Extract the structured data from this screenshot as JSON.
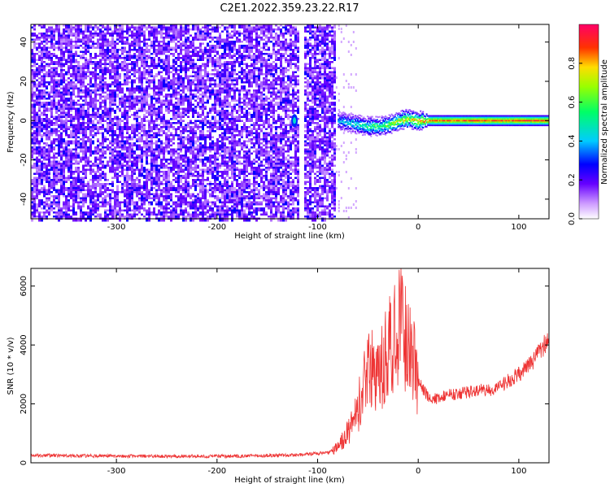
{
  "chart_data": [
    {
      "type": "heatmap",
      "title": "C2E1.2022.359.23.22.R17",
      "xlabel": "Height of straight line (km)",
      "ylabel": "Frequency (Hz)",
      "xlim": [
        -385,
        130
      ],
      "ylim": [
        -50,
        49
      ],
      "xticks": [
        -300,
        -200,
        -100,
        0,
        100
      ],
      "yticks": [
        -40,
        -20,
        0,
        20,
        40
      ],
      "grid": false,
      "colorbar": {
        "label": "Normalized spectral amplitude",
        "range": [
          0,
          1
        ],
        "ticks": [
          "0.0",
          "0.2",
          "0.4",
          "0.6",
          "0.8"
        ]
      },
      "description_points": {
        "noise_region_x": [
          -385,
          -82
        ],
        "gap_x": -118,
        "signal_track": [
          {
            "x": -80,
            "f": 0,
            "amp": 0.45
          },
          {
            "x": -70,
            "f": -1,
            "amp": 0.5
          },
          {
            "x": -60,
            "f": -2,
            "amp": 0.55
          },
          {
            "x": -50,
            "f": -3,
            "amp": 0.6
          },
          {
            "x": -40,
            "f": -3,
            "amp": 0.65
          },
          {
            "x": -30,
            "f": -2,
            "amp": 0.7
          },
          {
            "x": -20,
            "f": 0,
            "amp": 0.8
          },
          {
            "x": -10,
            "f": 1,
            "amp": 0.85
          },
          {
            "x": 0,
            "f": 0,
            "amp": 0.9
          },
          {
            "x": 50,
            "f": 0,
            "amp": 0.95
          },
          {
            "x": 130,
            "f": 0,
            "amp": 0.95
          }
        ]
      }
    },
    {
      "type": "line",
      "xlabel": "Height of straight line (km)",
      "ylabel": "SNR (10 * v/v)",
      "xlim": [
        -385,
        130
      ],
      "ylim": [
        0,
        6600
      ],
      "xticks": [
        -300,
        -200,
        -100,
        0,
        100
      ],
      "yticks": [
        0,
        2000,
        4000,
        6000
      ],
      "grid": false,
      "series": [
        {
          "color": "#ee3333",
          "x": [
            -385,
            -300,
            -200,
            -120,
            -90,
            -80,
            -70,
            -60,
            -55,
            -50,
            -45,
            -40,
            -35,
            -30,
            -25,
            -20,
            -15,
            -10,
            -5,
            0,
            5,
            10,
            15,
            20,
            30,
            40,
            50,
            60,
            70,
            80,
            90,
            100,
            110,
            120,
            130
          ],
          "y": [
            250,
            230,
            220,
            260,
            350,
            500,
            1000,
            1800,
            2500,
            3000,
            3200,
            2800,
            3400,
            3800,
            4200,
            4600,
            4400,
            4000,
            3600,
            2800,
            2500,
            2200,
            2150,
            2200,
            2300,
            2350,
            2400,
            2500,
            2450,
            2550,
            2800,
            3000,
            3300,
            3700,
            4300
          ],
          "peak": {
            "x": -17,
            "y": 6600
          }
        }
      ]
    }
  ]
}
